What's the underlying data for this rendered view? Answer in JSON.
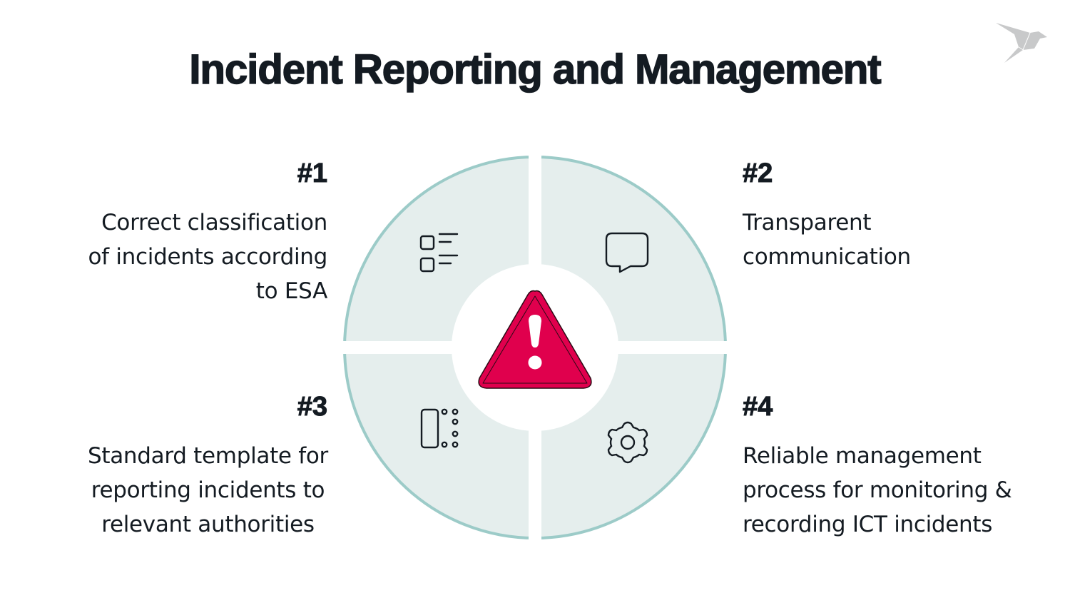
{
  "title": "Incident Reporting and Management",
  "colors": {
    "accent": "#e0004d",
    "segment_fill": "#e5eeed",
    "segment_border": "#9ccbc8",
    "text": "#141b22",
    "logo": "#c8c9ca"
  },
  "center_icon": "warning-triangle-icon",
  "items": [
    {
      "number": "#1",
      "lines": [
        "Correct classification",
        "of incidents according",
        "to ESA"
      ],
      "icon": "checklist-icon"
    },
    {
      "number": "#2",
      "lines": [
        "Transparent",
        "communication"
      ],
      "icon": "speech-bubble-icon"
    },
    {
      "number": "#3",
      "lines": [
        "Standard template for",
        "reporting incidents to",
        "relevant authorities"
      ],
      "icon": "template-layout-icon"
    },
    {
      "number": "#4",
      "lines": [
        "Reliable management",
        "process for monitoring &",
        "recording ICT incidents"
      ],
      "icon": "gear-icon"
    }
  ]
}
